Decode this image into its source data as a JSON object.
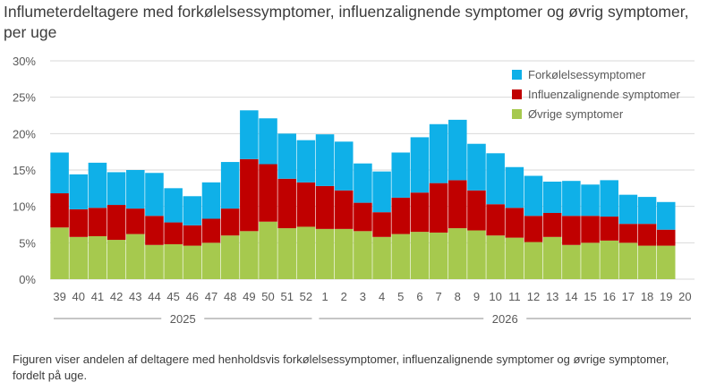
{
  "title_line1": "Influmeterdeltagere med forkølelsessymptomer, influenzalignende symptomer og øvrig symptomer,",
  "title_line2": "per uge",
  "caption": "Figuren viser andelen af deltagere med henholdsvis forkølelsessymptomer, influenzalignende  symptomer og øvrige symptomer,  fordelt på uge.",
  "colors": {
    "forkolelse": "#0fb0e8",
    "influenza": "#c00000",
    "ovrige": "#a6c94e",
    "grid": "#d9d9d9",
    "axis_text": "#595959"
  },
  "chart_data": {
    "type": "bar",
    "stacked": true,
    "categories": [
      "39",
      "40",
      "41",
      "42",
      "43",
      "44",
      "45",
      "46",
      "47",
      "48",
      "49",
      "50",
      "51",
      "52",
      "1",
      "2",
      "3",
      "4",
      "5",
      "6",
      "7",
      "8",
      "9",
      "10",
      "11",
      "12",
      "13",
      "14",
      "15",
      "16",
      "17",
      "18",
      "19",
      "20"
    ],
    "year_groups": [
      {
        "label": "2025",
        "from": "39",
        "to": "52"
      },
      {
        "label": "2026",
        "from": "1",
        "to": "20"
      }
    ],
    "ylim": [
      0,
      30
    ],
    "yticks": [
      "0%",
      "5%",
      "10%",
      "15%",
      "20%",
      "25%",
      "30%"
    ],
    "grid": true,
    "legend_position": "top-right",
    "series": [
      {
        "name": "Øvrige symptomer",
        "key": "ovrige",
        "values": [
          7.1,
          5.8,
          5.9,
          5.4,
          6.2,
          4.7,
          4.8,
          4.6,
          5.0,
          6.0,
          6.6,
          7.9,
          7.0,
          7.2,
          6.9,
          6.9,
          6.6,
          5.8,
          6.2,
          6.5,
          6.4,
          7.0,
          6.7,
          6.0,
          5.7,
          5.1,
          5.8,
          4.7,
          5.0,
          5.3,
          5.0,
          4.6,
          4.6,
          null
        ]
      },
      {
        "name": "Influenzalignende symptomer",
        "key": "influenza",
        "values": [
          4.7,
          3.8,
          3.9,
          4.8,
          3.5,
          4.0,
          3.0,
          2.8,
          3.3,
          3.7,
          9.9,
          7.9,
          6.8,
          6.1,
          5.9,
          5.3,
          3.9,
          3.4,
          5.0,
          5.4,
          6.8,
          6.6,
          5.5,
          4.3,
          4.1,
          3.6,
          3.3,
          4.0,
          3.7,
          3.3,
          2.6,
          3.0,
          2.2,
          null
        ]
      },
      {
        "name": "Forkølelsessymptomer",
        "key": "forkolelse",
        "values": [
          5.6,
          4.8,
          6.2,
          4.5,
          5.3,
          5.9,
          4.7,
          4.0,
          5.0,
          6.4,
          6.7,
          6.3,
          6.2,
          5.8,
          7.1,
          6.7,
          5.4,
          5.6,
          6.2,
          7.6,
          8.1,
          8.3,
          6.4,
          7.0,
          5.6,
          5.5,
          4.3,
          4.8,
          4.3,
          5.0,
          4.0,
          3.7,
          3.8,
          null
        ]
      }
    ],
    "legend": [
      {
        "label": "Forkølelsessymptomer",
        "key": "forkolelse"
      },
      {
        "label": "Influenzalignende symptomer",
        "key": "influenza"
      },
      {
        "label": "Øvrige symptomer",
        "key": "ovrige"
      }
    ]
  }
}
